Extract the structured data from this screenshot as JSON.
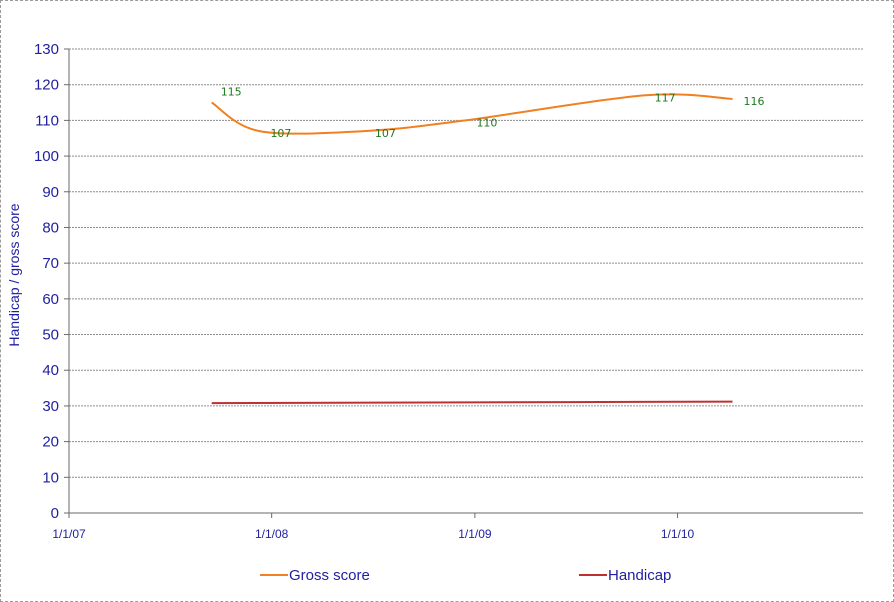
{
  "chart_data": {
    "type": "line",
    "ylabel": "Handicap / gross score",
    "xlabel": "",
    "ylim": [
      0,
      130
    ],
    "yticks": [
      0,
      10,
      20,
      30,
      40,
      50,
      60,
      70,
      80,
      90,
      100,
      110,
      120,
      130
    ],
    "xlim": [
      "2007-01-01",
      "2010-12-01"
    ],
    "xticks": [
      {
        "date": "2007-01-01",
        "label": "1/1/07"
      },
      {
        "date": "2008-01-01",
        "label": "1/1/08"
      },
      {
        "date": "2009-01-01",
        "label": "1/1/09"
      },
      {
        "date": "2010-01-01",
        "label": "1/1/10"
      }
    ],
    "grid": true,
    "legend": "bottom",
    "series": [
      {
        "name": "Gross score",
        "color": "#f08020",
        "points": [
          {
            "x": "2007-09-15",
            "y": 115,
            "label": "115"
          },
          {
            "x": "2007-12-10",
            "y": 107,
            "label": "107"
          },
          {
            "x": "2008-06-15",
            "y": 107,
            "label": "107"
          },
          {
            "x": "2008-12-15",
            "y": 110,
            "label": "110"
          },
          {
            "x": "2009-11-01",
            "y": 117,
            "label": "117"
          },
          {
            "x": "2010-04-10",
            "y": 116,
            "label": "116"
          }
        ]
      },
      {
        "name": "Handicap",
        "color": "#c03030",
        "points": [
          {
            "x": "2007-09-15",
            "y": 30.8
          },
          {
            "x": "2008-12-15",
            "y": 31.0
          },
          {
            "x": "2010-04-10",
            "y": 31.2
          }
        ]
      }
    ]
  }
}
